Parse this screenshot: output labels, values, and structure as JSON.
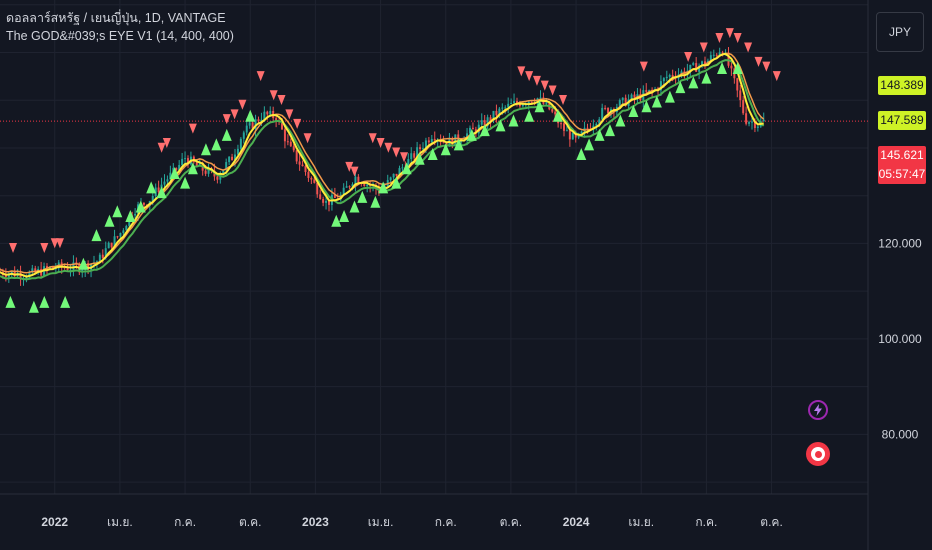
{
  "legend": {
    "symbol_line": "ดอลลาร์สหรัฐ / เยนญี่ปุ่น, 1D, VANTAGE",
    "indicator_line": "The GOD&#039;s EYE V1 (14, 400, 400)"
  },
  "currency_button": "JPY",
  "price_tags": {
    "upper": "148.389",
    "lower": "147.589",
    "last": "145.621",
    "countdown": "05:57:47"
  },
  "icons": {
    "flash": "lightning-icon",
    "record": "target-icon"
  },
  "colors": {
    "background": "#131722",
    "grid": "#1f2330",
    "candle_up": "#26a69a",
    "candle_down": "#ef5350",
    "ma_fast": "#ffeb3b",
    "ma_slow": "#4caf50",
    "ma_mid": "#f2994a",
    "buy_marker": "#73f97a",
    "sell_marker": "#ff6f6f",
    "last_price_line": "#f23645"
  },
  "chart_data": {
    "type": "line",
    "series_name": "USDJPY",
    "ylim": [
      67.5,
      171
    ],
    "y_ticks": [
      {
        "value": 120,
        "label": "120.000"
      },
      {
        "value": 100,
        "label": "100.000"
      },
      {
        "value": 80,
        "label": "80.000"
      }
    ],
    "x_ticks": [
      {
        "x": 2022.0,
        "label": "2022",
        "bold": true
      },
      {
        "x": 2022.25,
        "label": "เม.ย.",
        "bold": false
      },
      {
        "x": 2022.5,
        "label": "ก.ค.",
        "bold": false
      },
      {
        "x": 2022.75,
        "label": "ต.ค.",
        "bold": false
      },
      {
        "x": 2023.0,
        "label": "2023",
        "bold": true
      },
      {
        "x": 2023.25,
        "label": "เม.ย.",
        "bold": false
      },
      {
        "x": 2023.5,
        "label": "ก.ค.",
        "bold": false
      },
      {
        "x": 2023.75,
        "label": "ต.ค.",
        "bold": false
      },
      {
        "x": 2024.0,
        "label": "2024",
        "bold": true
      },
      {
        "x": 2024.25,
        "label": "เม.ย.",
        "bold": false
      },
      {
        "x": 2024.5,
        "label": "ก.ค.",
        "bold": false
      },
      {
        "x": 2024.75,
        "label": "ต.ค.",
        "bold": false
      }
    ],
    "xlim": [
      2021.79,
      2025.12
    ],
    "last_price": 145.621,
    "price_path": [
      [
        2021.79,
        114.0
      ],
      [
        2021.9,
        113.5
      ],
      [
        2022.0,
        115.0
      ],
      [
        2022.1,
        115.0
      ],
      [
        2022.17,
        116.5
      ],
      [
        2022.2,
        119.0
      ],
      [
        2022.25,
        122.0
      ],
      [
        2022.3,
        127.0
      ],
      [
        2022.36,
        129.0
      ],
      [
        2022.42,
        133.0
      ],
      [
        2022.46,
        135.0
      ],
      [
        2022.5,
        138.0
      ],
      [
        2022.55,
        136.0
      ],
      [
        2022.62,
        134.0
      ],
      [
        2022.68,
        138.0
      ],
      [
        2022.72,
        143.0
      ],
      [
        2022.8,
        147.0
      ],
      [
        2022.85,
        146.5
      ],
      [
        2022.9,
        140.0
      ],
      [
        2022.95,
        136.0
      ],
      [
        2023.0,
        132.0
      ],
      [
        2023.04,
        128.5
      ],
      [
        2023.1,
        130.0
      ],
      [
        2023.15,
        134.0
      ],
      [
        2023.2,
        132.5
      ],
      [
        2023.25,
        131.0
      ],
      [
        2023.3,
        134.0
      ],
      [
        2023.37,
        138.0
      ],
      [
        2023.45,
        143.0
      ],
      [
        2023.5,
        141.0
      ],
      [
        2023.55,
        142.0
      ],
      [
        2023.62,
        144.0
      ],
      [
        2023.7,
        147.5
      ],
      [
        2023.75,
        149.0
      ],
      [
        2023.85,
        150.5
      ],
      [
        2023.9,
        148.0
      ],
      [
        2023.95,
        144.0
      ],
      [
        2024.0,
        141.5
      ],
      [
        2024.05,
        144.5
      ],
      [
        2024.1,
        147.5
      ],
      [
        2024.2,
        150.0
      ],
      [
        2024.3,
        152.0
      ],
      [
        2024.35,
        155.0
      ],
      [
        2024.42,
        156.0
      ],
      [
        2024.5,
        158.0
      ],
      [
        2024.56,
        161.0
      ],
      [
        2024.6,
        155.0
      ],
      [
        2024.65,
        146.0
      ],
      [
        2024.7,
        145.0
      ],
      [
        2024.72,
        145.6
      ]
    ],
    "buy_signals": [
      [
        2021.83,
        109
      ],
      [
        2021.92,
        108
      ],
      [
        2021.96,
        109
      ],
      [
        2022.04,
        109
      ],
      [
        2022.11,
        117
      ],
      [
        2022.16,
        123
      ],
      [
        2022.21,
        126
      ],
      [
        2022.24,
        128
      ],
      [
        2022.29,
        127
      ],
      [
        2022.33,
        129
      ],
      [
        2022.37,
        133
      ],
      [
        2022.41,
        132
      ],
      [
        2022.46,
        136
      ],
      [
        2022.5,
        134
      ],
      [
        2022.53,
        137
      ],
      [
        2022.58,
        141
      ],
      [
        2022.62,
        142
      ],
      [
        2022.66,
        144
      ],
      [
        2022.75,
        148
      ],
      [
        2023.08,
        126
      ],
      [
        2023.11,
        127
      ],
      [
        2023.15,
        129
      ],
      [
        2023.18,
        131
      ],
      [
        2023.23,
        130
      ],
      [
        2023.26,
        133
      ],
      [
        2023.31,
        134
      ],
      [
        2023.35,
        137
      ],
      [
        2023.4,
        139
      ],
      [
        2023.45,
        140
      ],
      [
        2023.5,
        141
      ],
      [
        2023.55,
        142
      ],
      [
        2023.6,
        144
      ],
      [
        2023.65,
        145
      ],
      [
        2023.71,
        146
      ],
      [
        2023.76,
        147
      ],
      [
        2023.82,
        148
      ],
      [
        2023.86,
        150
      ],
      [
        2023.93,
        148
      ],
      [
        2024.02,
        140
      ],
      [
        2024.05,
        142
      ],
      [
        2024.09,
        144
      ],
      [
        2024.13,
        145
      ],
      [
        2024.17,
        147
      ],
      [
        2024.22,
        149
      ],
      [
        2024.27,
        150
      ],
      [
        2024.31,
        151
      ],
      [
        2024.36,
        152
      ],
      [
        2024.4,
        154
      ],
      [
        2024.45,
        155
      ],
      [
        2024.5,
        156
      ],
      [
        2024.56,
        158
      ],
      [
        2024.62,
        158
      ]
    ],
    "sell_signals": [
      [
        2021.84,
        118
      ],
      [
        2021.96,
        118
      ],
      [
        2022.0,
        119
      ],
      [
        2022.02,
        119
      ],
      [
        2022.41,
        139
      ],
      [
        2022.43,
        140
      ],
      [
        2022.53,
        143
      ],
      [
        2022.66,
        145
      ],
      [
        2022.69,
        146
      ],
      [
        2022.72,
        148
      ],
      [
        2022.79,
        154
      ],
      [
        2022.84,
        150
      ],
      [
        2022.87,
        149
      ],
      [
        2022.9,
        146
      ],
      [
        2022.93,
        144
      ],
      [
        2022.97,
        141
      ],
      [
        2023.13,
        135
      ],
      [
        2023.15,
        134
      ],
      [
        2023.22,
        141
      ],
      [
        2023.25,
        140
      ],
      [
        2023.28,
        139
      ],
      [
        2023.31,
        138
      ],
      [
        2023.34,
        137
      ],
      [
        2023.79,
        155
      ],
      [
        2023.82,
        154
      ],
      [
        2023.85,
        153
      ],
      [
        2023.88,
        152
      ],
      [
        2023.91,
        151
      ],
      [
        2023.95,
        149
      ],
      [
        2024.26,
        156
      ],
      [
        2024.43,
        158
      ],
      [
        2024.49,
        160
      ],
      [
        2024.55,
        162
      ],
      [
        2024.59,
        163
      ],
      [
        2024.62,
        162
      ],
      [
        2024.66,
        160
      ],
      [
        2024.7,
        157
      ],
      [
        2024.73,
        156
      ],
      [
        2024.77,
        154
      ]
    ]
  }
}
